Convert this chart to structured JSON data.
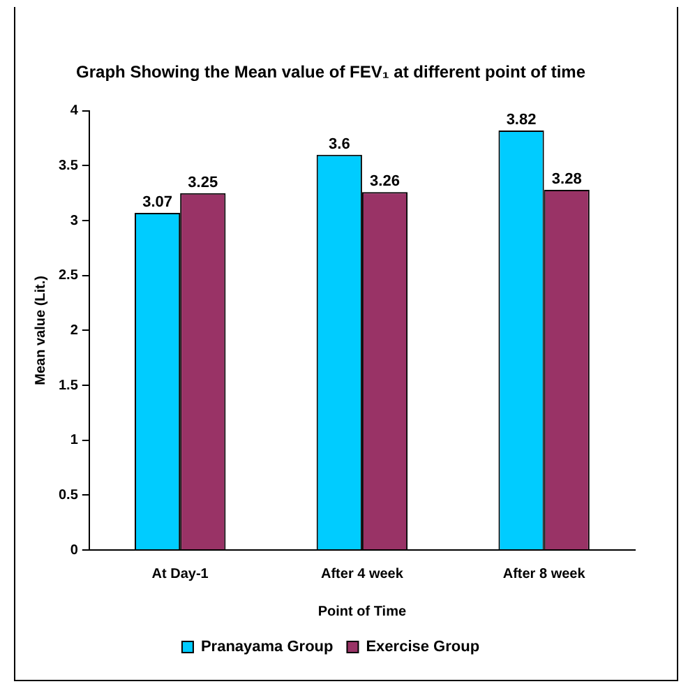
{
  "chart_data": {
    "type": "bar",
    "title": "Graph Showing the Mean value of FEV₁ at different point of time",
    "xlabel": "Point of Time",
    "ylabel": "Mean value (Lit.)",
    "categories": [
      "At Day-1",
      "After 4 week",
      "After 8 week"
    ],
    "series": [
      {
        "name": "Pranayama Group",
        "color": "#00ccff",
        "values": [
          3.07,
          3.6,
          3.82
        ]
      },
      {
        "name": "Exercise Group",
        "color": "#993366",
        "values": [
          3.25,
          3.26,
          3.28
        ]
      }
    ],
    "ylim": [
      0,
      4
    ],
    "yticks": [
      0,
      0.5,
      1,
      1.5,
      2,
      2.5,
      3,
      3.5,
      4
    ],
    "data_labels": true,
    "legend": "bottom",
    "grid": false
  }
}
